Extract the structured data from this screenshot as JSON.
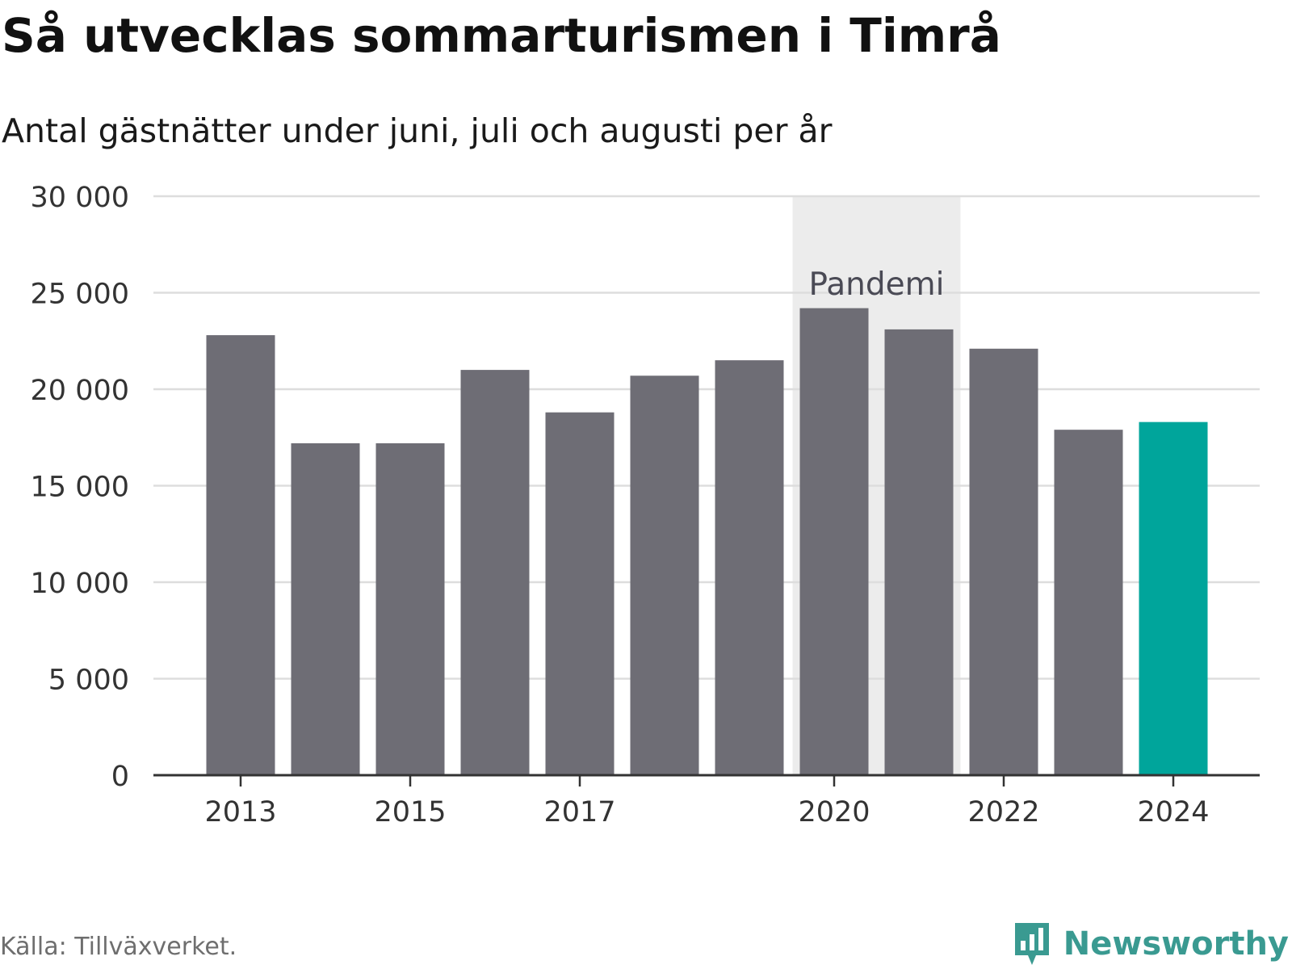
{
  "header": {
    "title": "Så utvecklas sommarturismen i Timrå",
    "subtitle": "Antal gästnätter under juni, juli och augusti per år"
  },
  "footer": {
    "source": "Källa: Tillväxverket.",
    "brand": "Newsworthy"
  },
  "colors": {
    "bar_default": "#6e6d75",
    "bar_highlight": "#00a59b",
    "band": "#ececec",
    "grid": "#dddddd",
    "axis": "#333333",
    "brand": "#3a9a91"
  },
  "chart_data": {
    "type": "bar",
    "categories": [
      "2013",
      "2014",
      "2015",
      "2016",
      "2017",
      "2018",
      "2019",
      "2020",
      "2021",
      "2022",
      "2023",
      "2024"
    ],
    "values": [
      22800,
      17200,
      17200,
      21000,
      18800,
      20700,
      21500,
      24200,
      23100,
      22100,
      17900,
      18300
    ],
    "highlight_category": "2024",
    "x_tick_labels": [
      "2013",
      "2015",
      "2017",
      "2020",
      "2022",
      "2024"
    ],
    "y_ticks": [
      0,
      5000,
      10000,
      15000,
      20000,
      25000,
      30000
    ],
    "y_tick_labels": [
      "0",
      "5 000",
      "10 000",
      "15 000",
      "20 000",
      "25 000",
      "30 000"
    ],
    "ylim": [
      0,
      30000
    ],
    "grid": true,
    "annotation": {
      "label": "Pandemi",
      "from": "2020",
      "to": "2021"
    }
  }
}
